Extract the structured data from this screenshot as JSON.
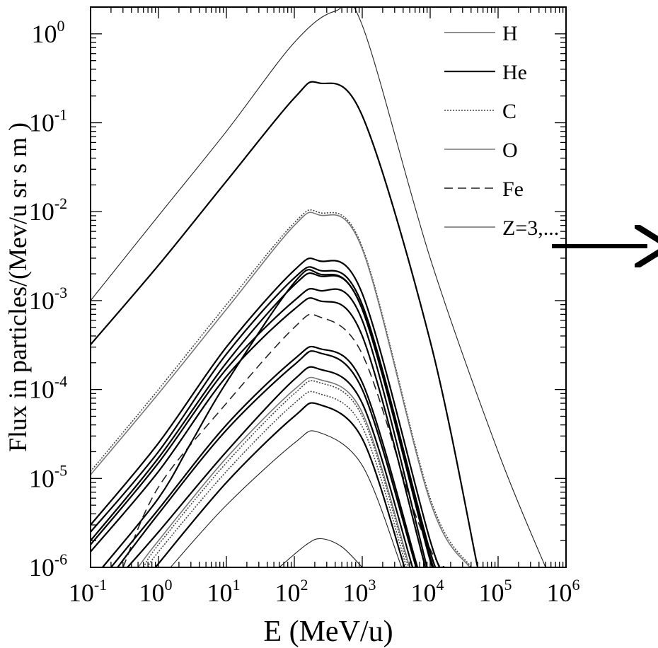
{
  "chart_data": {
    "type": "line",
    "x_scale": "log",
    "y_scale": "log",
    "xlim": [
      0.1,
      1000000
    ],
    "ylim": [
      1e-06,
      2.0
    ],
    "xlabel": "E (MeV/u)",
    "ylabel": "Flux in particles/(Mev/u sr s m )",
    "grid": false,
    "legend_position": "top-right",
    "x_ticks": [
      {
        "base": "10",
        "exp": "-1",
        "value": 0.1
      },
      {
        "base": "10",
        "exp": "0",
        "value": 1
      },
      {
        "base": "10",
        "exp": "1",
        "value": 10
      },
      {
        "base": "10",
        "exp": "2",
        "value": 100
      },
      {
        "base": "10",
        "exp": "3",
        "value": 1000
      },
      {
        "base": "10",
        "exp": "4",
        "value": 10000
      },
      {
        "base": "10",
        "exp": "5",
        "value": 100000
      },
      {
        "base": "10",
        "exp": "6",
        "value": 1000000
      }
    ],
    "y_ticks": [
      {
        "base": "10",
        "exp": "-6",
        "value": 1e-06
      },
      {
        "base": "10",
        "exp": "-5",
        "value": 1e-05
      },
      {
        "base": "10",
        "exp": "-4",
        "value": 0.0001
      },
      {
        "base": "10",
        "exp": "-3",
        "value": 0.001
      },
      {
        "base": "10",
        "exp": "-2",
        "value": 0.01
      },
      {
        "base": "10",
        "exp": "-1",
        "value": 0.1
      },
      {
        "base": "10",
        "exp": "0",
        "value": 1
      }
    ],
    "legend": [
      {
        "name": "H",
        "style": "thin"
      },
      {
        "name": "He",
        "style": "thick"
      },
      {
        "name": "C",
        "style": "dotted"
      },
      {
        "name": "O",
        "style": "gray"
      },
      {
        "name": "Fe",
        "style": "dashed"
      },
      {
        "name": "Z=3,...",
        "style": "thin"
      }
    ],
    "series": [
      {
        "name": "H",
        "style": "thin",
        "curve": [
          [
            0.1,
            0.001
          ],
          [
            1,
            0.009
          ],
          [
            10,
            0.08
          ],
          [
            100,
            0.8
          ],
          [
            400,
            1.8
          ],
          [
            1000,
            1.25
          ],
          [
            10000,
            0.003
          ],
          [
            100000,
            2e-05
          ],
          [
            500000,
            1e-06
          ]
        ]
      },
      {
        "name": "He",
        "style": "thick",
        "curve": [
          [
            0.1,
            0.00032
          ],
          [
            1,
            0.0025
          ],
          [
            10,
            0.022
          ],
          [
            100,
            0.19
          ],
          [
            230,
            0.28
          ],
          [
            1000,
            0.12
          ],
          [
            10000,
            0.00035
          ],
          [
            50000,
            1e-06
          ]
        ]
      },
      {
        "name": "C",
        "style": "dotted",
        "curve": [
          [
            0.1,
            1.2e-05
          ],
          [
            1,
            0.0001
          ],
          [
            10,
            0.0009
          ],
          [
            100,
            0.0075
          ],
          [
            230,
            0.0098
          ],
          [
            1000,
            0.004
          ],
          [
            10000,
            6e-06
          ],
          [
            40000,
            1e-06
          ]
        ]
      },
      {
        "name": "O",
        "style": "gray",
        "curve": [
          [
            0.1,
            1.1e-05
          ],
          [
            1,
            9e-05
          ],
          [
            10,
            0.0008
          ],
          [
            100,
            0.007
          ],
          [
            230,
            0.0092
          ],
          [
            1000,
            0.0038
          ],
          [
            10000,
            5.5e-06
          ],
          [
            38000,
            1e-06
          ]
        ]
      },
      {
        "name": "Fe",
        "style": "dashed",
        "curve": [
          [
            0.3,
            1e-06
          ],
          [
            1,
            8e-06
          ],
          [
            10,
            7e-05
          ],
          [
            100,
            0.0005
          ],
          [
            230,
            0.00066
          ],
          [
            1000,
            0.00025
          ],
          [
            6000,
            4e-06
          ],
          [
            14000,
            1e-06
          ]
        ]
      },
      {
        "style": "thick",
        "curve": [
          [
            0.1,
            3e-06
          ],
          [
            1,
            2.5e-05
          ],
          [
            10,
            0.0003
          ],
          [
            100,
            0.0022
          ],
          [
            230,
            0.0028
          ],
          [
            1000,
            0.0012
          ],
          [
            10000,
            2e-06
          ],
          [
            16000,
            1e-06
          ]
        ]
      },
      {
        "style": "thick",
        "curve": [
          [
            0.1,
            2.5e-06
          ],
          [
            1,
            2e-05
          ],
          [
            10,
            0.00025
          ],
          [
            100,
            0.0018
          ],
          [
            230,
            0.0022
          ],
          [
            1000,
            0.0009
          ],
          [
            10000,
            1.5e-06
          ],
          [
            15000,
            1e-06
          ]
        ]
      },
      {
        "style": "thick",
        "curve": [
          [
            0.1,
            2e-06
          ],
          [
            1,
            1.7e-05
          ],
          [
            10,
            0.0002
          ],
          [
            100,
            0.0015
          ],
          [
            230,
            0.0019
          ],
          [
            1000,
            0.0008
          ],
          [
            10000,
            1.2e-06
          ],
          [
            13000,
            1e-06
          ]
        ]
      },
      {
        "style": "thick",
        "curve": [
          [
            0.1,
            1.8e-06
          ],
          [
            1,
            1.5e-05
          ],
          [
            10,
            0.00017
          ],
          [
            100,
            0.001
          ],
          [
            230,
            0.0013
          ],
          [
            1000,
            0.0006
          ],
          [
            9000,
            1e-06
          ]
        ]
      },
      {
        "style": "thick",
        "curve": [
          [
            0.1,
            1.5e-06
          ],
          [
            1,
            1.2e-05
          ],
          [
            10,
            0.00014
          ],
          [
            100,
            0.0008
          ],
          [
            230,
            0.001
          ],
          [
            1000,
            0.0004
          ],
          [
            8500,
            1e-06
          ]
        ]
      },
      {
        "style": "thick",
        "curve": [
          [
            0.2,
            1e-06
          ],
          [
            1,
            4.5e-06
          ],
          [
            10,
            4e-05
          ],
          [
            100,
            0.00022
          ],
          [
            230,
            0.00029
          ],
          [
            1000,
            0.00012
          ],
          [
            6500,
            1e-06
          ]
        ]
      },
      {
        "style": "thick",
        "curve": [
          [
            0.25,
            1e-06
          ],
          [
            1,
            4e-06
          ],
          [
            10,
            3.5e-05
          ],
          [
            100,
            0.00019
          ],
          [
            230,
            0.00026
          ],
          [
            1000,
            0.0001
          ],
          [
            6200,
            1e-06
          ]
        ]
      },
      {
        "style": "thick",
        "curve": [
          [
            0.35,
            1e-06
          ],
          [
            1,
            2.5e-06
          ],
          [
            10,
            2e-05
          ],
          [
            100,
            0.00013
          ],
          [
            230,
            0.00017
          ],
          [
            1000,
            7e-05
          ],
          [
            5500,
            1e-06
          ]
        ]
      },
      {
        "style": "gray",
        "curve": [
          [
            0.5,
            1e-06
          ],
          [
            1,
            2e-06
          ],
          [
            10,
            1.7e-05
          ],
          [
            100,
            0.0001
          ],
          [
            230,
            0.00013
          ],
          [
            1000,
            5.5e-05
          ],
          [
            5000,
            1e-06
          ]
        ]
      },
      {
        "style": "dotted",
        "curve": [
          [
            0.6,
            1e-06
          ],
          [
            1,
            1.8e-06
          ],
          [
            10,
            1.5e-05
          ],
          [
            100,
            9e-05
          ],
          [
            230,
            0.00012
          ],
          [
            1000,
            5e-05
          ],
          [
            4800,
            1e-06
          ]
        ]
      },
      {
        "style": "dotted",
        "curve": [
          [
            0.7,
            1e-06
          ],
          [
            1,
            1.5e-06
          ],
          [
            10,
            1.2e-05
          ],
          [
            100,
            7e-05
          ],
          [
            230,
            9e-05
          ],
          [
            1000,
            3.8e-05
          ],
          [
            4500,
            1e-06
          ]
        ]
      },
      {
        "style": "thick",
        "curve": [
          [
            0.9,
            1e-06
          ],
          [
            10,
            9e-06
          ],
          [
            100,
            5e-05
          ],
          [
            230,
            6.8e-05
          ],
          [
            1000,
            2.8e-05
          ],
          [
            4200,
            1e-06
          ]
        ]
      },
      {
        "style": "thin",
        "curve": [
          [
            1.5,
            1e-06
          ],
          [
            10,
            5e-06
          ],
          [
            100,
            2.5e-05
          ],
          [
            230,
            3.3e-05
          ],
          [
            1000,
            1.4e-05
          ],
          [
            3800,
            1e-06
          ]
        ]
      },
      {
        "style": "thin",
        "curve": [
          [
            60,
            1e-06
          ],
          [
            150,
            1.8e-06
          ],
          [
            250,
            2.1e-06
          ],
          [
            500,
            1.7e-06
          ],
          [
            1000,
            1e-06
          ]
        ]
      },
      {
        "style": "thick",
        "curve": [
          [
            0.15,
            1e-06
          ],
          [
            1,
            6e-06
          ],
          [
            3,
            2.5e-05
          ],
          [
            10,
            0.00012
          ],
          [
            100,
            0.0016
          ],
          [
            230,
            0.002
          ],
          [
            1000,
            0.0008
          ],
          [
            10000,
            1.3e-06
          ],
          [
            14000,
            1e-06
          ]
        ]
      }
    ]
  }
}
